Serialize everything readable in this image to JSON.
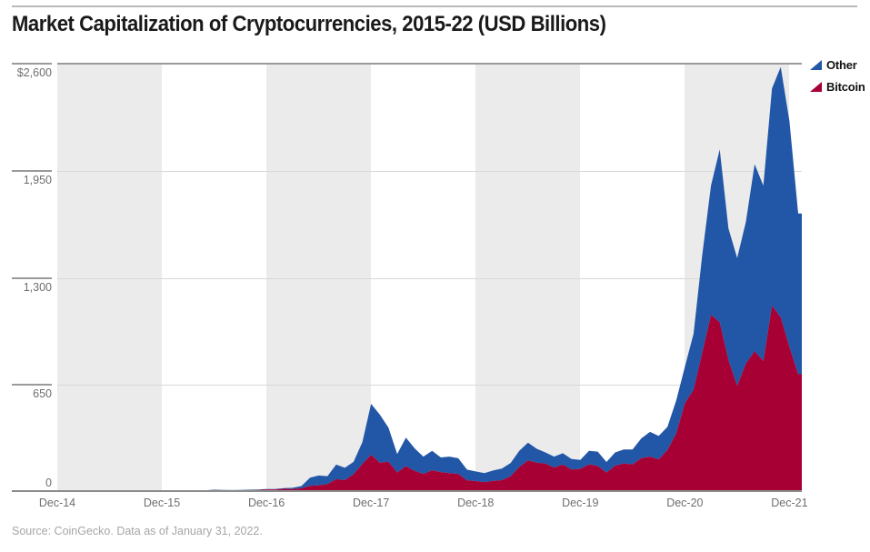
{
  "title": "Market Capitalization of Cryptocurrencies, 2015-22 (USD Billions)",
  "source": "Source: CoinGecko. Data as of January 31, 2022.",
  "legend": [
    {
      "label": "Other",
      "color": "#2256a6"
    },
    {
      "label": "Bitcoin",
      "color": "#a60034"
    }
  ],
  "axes": {
    "y_ticks": [
      {
        "label": "$2,600",
        "value": 2600
      },
      {
        "label": "1,950",
        "value": 1950
      },
      {
        "label": "1,300",
        "value": 1300
      },
      {
        "label": "650",
        "value": 650
      },
      {
        "label": "0",
        "value": 0
      }
    ],
    "x_ticks": [
      "Dec-14",
      "Dec-15",
      "Dec-16",
      "Dec-17",
      "Dec-18",
      "Dec-19",
      "Dec-20",
      "Dec-21"
    ]
  },
  "chart_data": {
    "type": "area",
    "stacked": true,
    "title": "Market Capitalization of Cryptocurrencies, 2015-22 (USD Billions)",
    "xlabel": "",
    "ylabel": "USD Billions",
    "ylim": [
      0,
      2600
    ],
    "grid": "horizontal",
    "legend_position": "top-right",
    "background_bands": "alternating yearly gray/white starting gray at Dec-14",
    "x_unit": "month-end",
    "months": [
      "2014-12",
      "2015-01",
      "2015-02",
      "2015-03",
      "2015-04",
      "2015-05",
      "2015-06",
      "2015-07",
      "2015-08",
      "2015-09",
      "2015-10",
      "2015-11",
      "2015-12",
      "2016-01",
      "2016-02",
      "2016-03",
      "2016-04",
      "2016-05",
      "2016-06",
      "2016-07",
      "2016-08",
      "2016-09",
      "2016-10",
      "2016-11",
      "2016-12",
      "2017-01",
      "2017-02",
      "2017-03",
      "2017-04",
      "2017-05",
      "2017-06",
      "2017-07",
      "2017-08",
      "2017-09",
      "2017-10",
      "2017-11",
      "2017-12",
      "2018-01",
      "2018-02",
      "2018-03",
      "2018-04",
      "2018-05",
      "2018-06",
      "2018-07",
      "2018-08",
      "2018-09",
      "2018-10",
      "2018-11",
      "2018-12",
      "2019-01",
      "2019-02",
      "2019-03",
      "2019-04",
      "2019-05",
      "2019-06",
      "2019-07",
      "2019-08",
      "2019-09",
      "2019-10",
      "2019-11",
      "2019-12",
      "2020-01",
      "2020-02",
      "2020-03",
      "2020-04",
      "2020-05",
      "2020-06",
      "2020-07",
      "2020-08",
      "2020-09",
      "2020-10",
      "2020-11",
      "2020-12",
      "2021-01",
      "2021-02",
      "2021-03",
      "2021-04",
      "2021-05",
      "2021-06",
      "2021-07",
      "2021-08",
      "2021-09",
      "2021-10",
      "2021-11",
      "2021-12",
      "2022-01"
    ],
    "series": [
      {
        "name": "Bitcoin",
        "color": "#a60034",
        "values": [
          4.4,
          3.1,
          3.5,
          3.4,
          3.3,
          3.3,
          3.8,
          4.1,
          3.3,
          3.4,
          4.5,
          5.3,
          6.5,
          5.6,
          6.6,
          6.4,
          6.9,
          8.3,
          10.5,
          9.7,
          9.1,
          9.7,
          11.1,
          11.8,
          15.5,
          15.4,
          19.4,
          17.6,
          22,
          37.8,
          40.7,
          47.3,
          78,
          71.7,
          108,
          170,
          225,
          178,
          183,
          118,
          157,
          128,
          110,
          132,
          121,
          114,
          110,
          70,
          66,
          60,
          67,
          72,
          95,
          150,
          192,
          178,
          172,
          148,
          166,
          137,
          140,
          168,
          158,
          118,
          160,
          172,
          168,
          205,
          215,
          198,
          255,
          355,
          540,
          620,
          845,
          1075,
          1030,
          800,
          645,
          780,
          855,
          795,
          1130,
          1060,
          880,
          715
        ]
      },
      {
        "name": "Other",
        "color": "#2256a6",
        "values": [
          1.1,
          1.1,
          1.2,
          1.2,
          1.1,
          1.2,
          1.2,
          1.2,
          1.2,
          1.2,
          1.3,
          1.3,
          1.4,
          1.4,
          1.6,
          2.0,
          2.1,
          2.4,
          3.1,
          2.7,
          2.7,
          2.8,
          2.9,
          3.0,
          2.2,
          2.5,
          4.1,
          7.9,
          14,
          49.2,
          59.3,
          48.7,
          88,
          75.3,
          75,
          132,
          310,
          292,
          207,
          112,
          173,
          137,
          105,
          118,
          89,
          101,
          95,
          66,
          59,
          55,
          63,
          70,
          80,
          100,
          108,
          84,
          68,
          67,
          69,
          63,
          55,
          82,
          87,
          64,
          80,
          86,
          90,
          120,
          150,
          142,
          140,
          200,
          220,
          340,
          595,
          785,
          1050,
          800,
          775,
          860,
          1135,
          1065,
          1320,
          1520,
          1370,
          975
        ]
      }
    ]
  },
  "colors": {
    "band_gray": "#ebebeb",
    "gridline": "#d8d8d8",
    "axis_dark": "#9a9a9a",
    "tick_text": "#6e6e6e",
    "title_text": "#1a1a1a",
    "source_text": "#a6a6a6"
  }
}
